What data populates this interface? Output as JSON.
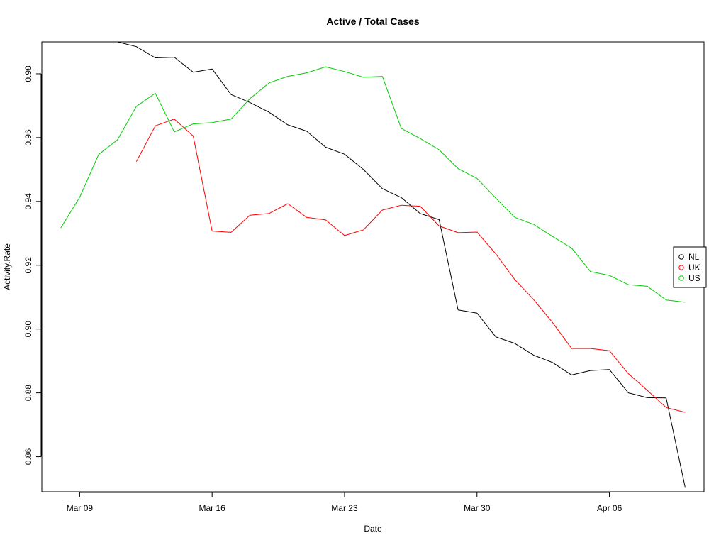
{
  "chart_data": {
    "type": "line",
    "title": "Active / Total Cases",
    "xlabel": "Date",
    "ylabel": "Activity.Rate",
    "x_ticks": [
      {
        "date": "Mar 09",
        "index": 0
      },
      {
        "date": "Mar 16",
        "index": 7
      },
      {
        "date": "Mar 23",
        "index": 14
      },
      {
        "date": "Mar 30",
        "index": 21
      },
      {
        "date": "Apr 06",
        "index": 28
      }
    ],
    "y_ticks": [
      "0.86",
      "0.88",
      "0.90",
      "0.92",
      "0.94",
      "0.96",
      "0.98"
    ],
    "xlim": [
      "Mar 07",
      "Apr 11"
    ],
    "ylim": [
      0.849,
      0.99
    ],
    "grid": false,
    "legend_position": "right",
    "series": [
      {
        "name": "NL",
        "color": "#000000",
        "points": [
          [
            "Mar 11",
            0.99
          ],
          [
            "Mar 12",
            0.9885
          ],
          [
            "Mar 13",
            0.985
          ],
          [
            "Mar 14",
            0.9852
          ],
          [
            "Mar 15",
            0.9805
          ],
          [
            "Mar 16",
            0.9815
          ],
          [
            "Mar 17",
            0.9735
          ],
          [
            "Mar 18",
            0.971
          ],
          [
            "Mar 19",
            0.968
          ],
          [
            "Mar 20",
            0.964
          ],
          [
            "Mar 21",
            0.962
          ],
          [
            "Mar 22",
            0.957
          ],
          [
            "Mar 23",
            0.9548
          ],
          [
            "Mar 24",
            0.95
          ],
          [
            "Mar 25",
            0.944
          ],
          [
            "Mar 26",
            0.9412
          ],
          [
            "Mar 27",
            0.9362
          ],
          [
            "Mar 28",
            0.9343
          ],
          [
            "Mar 29",
            0.906
          ],
          [
            "Mar 30",
            0.905
          ],
          [
            "Mar 31",
            0.8975
          ],
          [
            "Apr 01",
            0.8955
          ],
          [
            "Apr 02",
            0.8918
          ],
          [
            "Apr 03",
            0.8895
          ],
          [
            "Apr 04",
            0.8856
          ],
          [
            "Apr 05",
            0.887
          ],
          [
            "Apr 06",
            0.8873
          ],
          [
            "Apr 07",
            0.88
          ],
          [
            "Apr 08",
            0.8785
          ],
          [
            "Apr 09",
            0.8784
          ],
          [
            "Apr 10",
            0.8505
          ]
        ]
      },
      {
        "name": "UK",
        "color": "#ff0000",
        "points": [
          [
            "Mar 12",
            0.9525
          ],
          [
            "Mar 13",
            0.9637
          ],
          [
            "Mar 14",
            0.9658
          ],
          [
            "Mar 15",
            0.9605
          ],
          [
            "Mar 16",
            0.9307
          ],
          [
            "Mar 17",
            0.9303
          ],
          [
            "Mar 18",
            0.9357
          ],
          [
            "Mar 19",
            0.9362
          ],
          [
            "Mar 20",
            0.9393
          ],
          [
            "Mar 21",
            0.935
          ],
          [
            "Mar 22",
            0.9342
          ],
          [
            "Mar 23",
            0.9293
          ],
          [
            "Mar 24",
            0.9311
          ],
          [
            "Mar 25",
            0.9373
          ],
          [
            "Mar 26",
            0.9388
          ],
          [
            "Mar 27",
            0.9385
          ],
          [
            "Mar 28",
            0.9323
          ],
          [
            "Mar 29",
            0.9302
          ],
          [
            "Mar 30",
            0.9304
          ],
          [
            "Mar 31",
            0.9235
          ],
          [
            "Apr 01",
            0.9155
          ],
          [
            "Apr 02",
            0.9092
          ],
          [
            "Apr 03",
            0.902
          ],
          [
            "Apr 04",
            0.8939
          ],
          [
            "Apr 05",
            0.8939
          ],
          [
            "Apr 06",
            0.8932
          ],
          [
            "Apr 07",
            0.886
          ],
          [
            "Apr 08",
            0.8808
          ],
          [
            "Apr 09",
            0.8754
          ],
          [
            "Apr 10",
            0.8739
          ]
        ]
      },
      {
        "name": "US",
        "color": "#00cd00",
        "points": [
          [
            "Mar 08",
            0.9317
          ],
          [
            "Mar 09",
            0.9413
          ],
          [
            "Mar 10",
            0.9547
          ],
          [
            "Mar 11",
            0.9593
          ],
          [
            "Mar 12",
            0.9698
          ],
          [
            "Mar 13",
            0.9739
          ],
          [
            "Mar 14",
            0.9618
          ],
          [
            "Mar 15",
            0.9643
          ],
          [
            "Mar 16",
            0.9647
          ],
          [
            "Mar 17",
            0.9658
          ],
          [
            "Mar 18",
            0.9722
          ],
          [
            "Mar 19",
            0.9771
          ],
          [
            "Mar 20",
            0.9792
          ],
          [
            "Mar 21",
            0.9803
          ],
          [
            "Mar 22",
            0.9822
          ],
          [
            "Mar 23",
            0.9807
          ],
          [
            "Mar 24",
            0.9789
          ],
          [
            "Mar 25",
            0.9792
          ],
          [
            "Mar 26",
            0.9629
          ],
          [
            "Mar 27",
            0.9597
          ],
          [
            "Mar 28",
            0.9562
          ],
          [
            "Mar 29",
            0.9503
          ],
          [
            "Mar 30",
            0.9472
          ],
          [
            "Mar 31",
            0.941
          ],
          [
            "Apr 01",
            0.935
          ],
          [
            "Apr 02",
            0.9328
          ],
          [
            "Apr 03",
            0.929
          ],
          [
            "Apr 04",
            0.9254
          ],
          [
            "Apr 05",
            0.918
          ],
          [
            "Apr 06",
            0.9168
          ],
          [
            "Apr 07",
            0.9139
          ],
          [
            "Apr 08",
            0.9134
          ],
          [
            "Apr 09",
            0.9091
          ],
          [
            "Apr 10",
            0.9084
          ]
        ]
      }
    ]
  }
}
